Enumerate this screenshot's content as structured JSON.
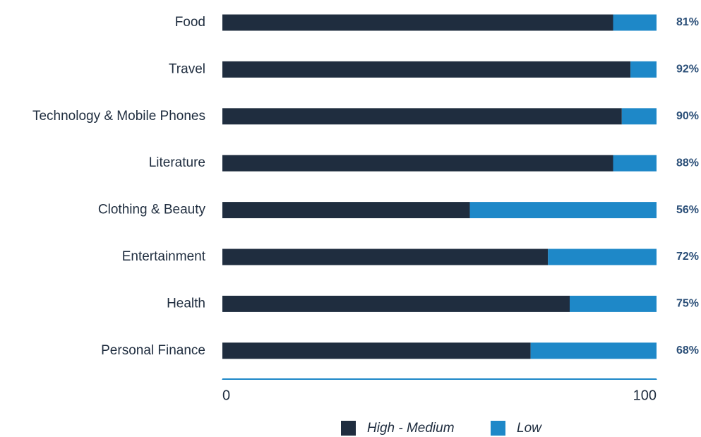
{
  "chart_data": {
    "type": "stacked_barh",
    "categories": [
      "Food",
      "Travel",
      "Technology & Mobile Phones",
      "Literature",
      "Clothing & Beauty",
      "Entertainment",
      "Health",
      "Personal Finance"
    ],
    "series": [
      {
        "name": "High - Medium",
        "color": "#1f2d3f",
        "values": [
          90,
          94,
          92,
          90,
          57,
          75,
          80,
          71
        ]
      },
      {
        "name": "Low",
        "color": "#1e88c8",
        "values": [
          10,
          6,
          8,
          10,
          43,
          25,
          20,
          29
        ]
      }
    ],
    "side_labels": [
      "81%",
      "92%",
      "90%",
      "88%",
      "56%",
      "72%",
      "75%",
      "68%"
    ],
    "xlim": [
      0,
      100
    ],
    "xticks": [
      0,
      100
    ],
    "grid": false
  }
}
